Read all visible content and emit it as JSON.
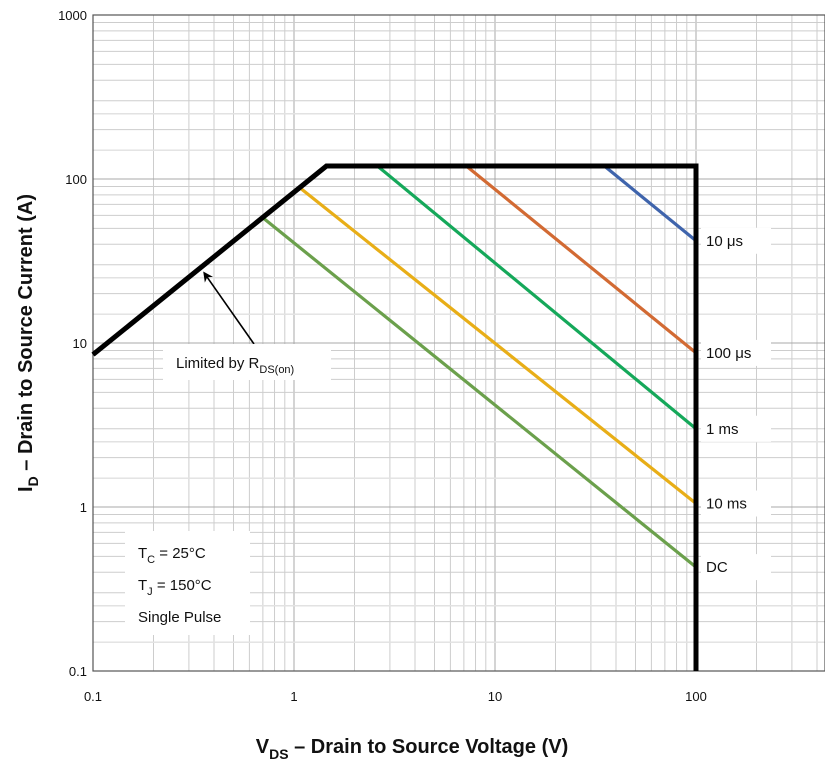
{
  "chart_data": {
    "type": "line",
    "xscale": "log",
    "yscale": "log",
    "xlim": [
      0.1,
      450
    ],
    "ylim": [
      0.1,
      1000
    ],
    "grid": true,
    "x_ticks": [
      "0.1",
      "1",
      "10",
      "100"
    ],
    "y_ticks": [
      "0.1",
      "1",
      "10",
      "100",
      "1000"
    ],
    "xlabel": {
      "main": "V",
      "sub": "DS",
      "rest": " – Drain to Source Voltage (V)"
    },
    "ylabel": {
      "main": "I",
      "sub": "D",
      "rest": " – Drain to Source Current (A)"
    },
    "boundary": {
      "color": "#000000",
      "points": [
        [
          0.1,
          8.5
        ],
        [
          1.45,
          120
        ],
        [
          100,
          120
        ],
        [
          100,
          0.1
        ]
      ]
    },
    "series": [
      {
        "name": "10 μs",
        "color": "#3f64ac",
        "x": [
          35,
          100
        ],
        "y": [
          120,
          42
        ]
      },
      {
        "name": "100 μs",
        "color": "#d26a33",
        "x": [
          7.2,
          100
        ],
        "y": [
          120,
          8.7
        ]
      },
      {
        "name": "1 ms",
        "color": "#15a85a",
        "x": [
          2.6,
          100
        ],
        "y": [
          120,
          3.0
        ]
      },
      {
        "name": "10 ms",
        "color": "#e8ae17",
        "x": [
          1.05,
          100
        ],
        "y": [
          90,
          1.05
        ]
      },
      {
        "name": "DC",
        "color": "#6ba04c",
        "x": [
          0.7,
          100
        ],
        "y": [
          58,
          0.43
        ]
      }
    ],
    "rds_annotation": {
      "main": "Limited by R",
      "sub": "DS(on)",
      "arrow_to": [
        0.35,
        29
      ]
    },
    "conditions": [
      {
        "main": "T",
        "sub": "C",
        "rest": " = 25°C"
      },
      {
        "main": "T",
        "sub": "J",
        "rest": " = 150°C"
      },
      {
        "main": "Single Pulse",
        "sub": "",
        "rest": ""
      }
    ]
  }
}
